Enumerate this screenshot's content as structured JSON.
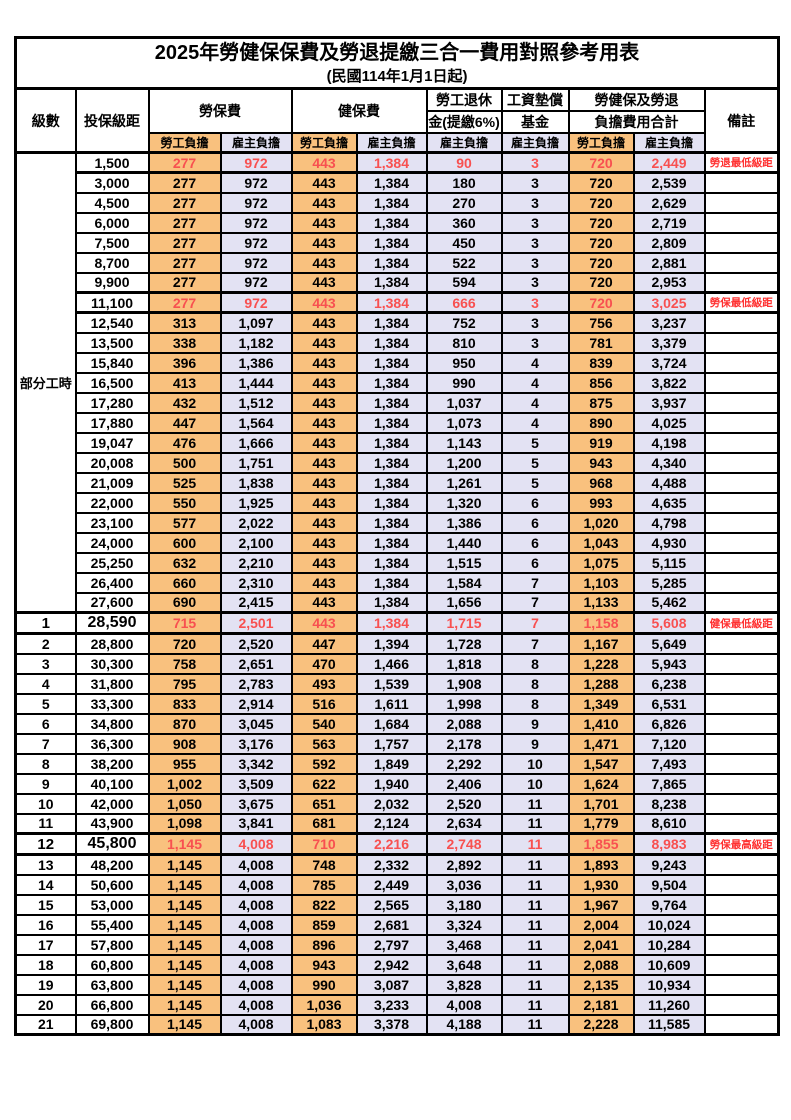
{
  "title": "2025年勞健保保費及勞退提繳三合一費用對照參考用表",
  "subtitle": "(民國114年1月1日起)",
  "header": {
    "level": "級數",
    "bracket": "投保級距",
    "labor_ins": "勞保費",
    "health_ins": "健保費",
    "pension_line1": "勞工退休",
    "pension_line2": "金(提繳6%)",
    "wage_fund_line1": "工資墊償",
    "wage_fund_line2": "基金",
    "total_line1": "勞健保及勞退",
    "total_line2": "負擔費用合計",
    "note": "備註",
    "employee": "勞工負擔",
    "employer": "雇主負擔"
  },
  "part_time": {
    "label": "部分工時",
    "rowspan": 23
  },
  "colors": {
    "employee_bg": "#F9C17E",
    "employer_bg": "#E3E2F3",
    "special_value_red": "#F85050",
    "note_red": "#FF3030"
  },
  "rows": [
    {
      "level": "",
      "bracket": "1,500",
      "li_emp": "277",
      "li_er": "972",
      "hi_emp": "443",
      "hi_er": "1,384",
      "pension_er": "90",
      "fund_er": "3",
      "sum_emp": "720",
      "sum_er": "2,449",
      "note": "勞退最低級距",
      "special": true,
      "emph": false
    },
    {
      "level": "",
      "bracket": "3,000",
      "li_emp": "277",
      "li_er": "972",
      "hi_emp": "443",
      "hi_er": "1,384",
      "pension_er": "180",
      "fund_er": "3",
      "sum_emp": "720",
      "sum_er": "2,539",
      "note": "",
      "special": false,
      "emph": false
    },
    {
      "level": "",
      "bracket": "4,500",
      "li_emp": "277",
      "li_er": "972",
      "hi_emp": "443",
      "hi_er": "1,384",
      "pension_er": "270",
      "fund_er": "3",
      "sum_emp": "720",
      "sum_er": "2,629",
      "note": "",
      "special": false,
      "emph": false
    },
    {
      "level": "",
      "bracket": "6,000",
      "li_emp": "277",
      "li_er": "972",
      "hi_emp": "443",
      "hi_er": "1,384",
      "pension_er": "360",
      "fund_er": "3",
      "sum_emp": "720",
      "sum_er": "2,719",
      "note": "",
      "special": false,
      "emph": false
    },
    {
      "level": "",
      "bracket": "7,500",
      "li_emp": "277",
      "li_er": "972",
      "hi_emp": "443",
      "hi_er": "1,384",
      "pension_er": "450",
      "fund_er": "3",
      "sum_emp": "720",
      "sum_er": "2,809",
      "note": "",
      "special": false,
      "emph": false
    },
    {
      "level": "",
      "bracket": "8,700",
      "li_emp": "277",
      "li_er": "972",
      "hi_emp": "443",
      "hi_er": "1,384",
      "pension_er": "522",
      "fund_er": "3",
      "sum_emp": "720",
      "sum_er": "2,881",
      "note": "",
      "special": false,
      "emph": false
    },
    {
      "level": "",
      "bracket": "9,900",
      "li_emp": "277",
      "li_er": "972",
      "hi_emp": "443",
      "hi_er": "1,384",
      "pension_er": "594",
      "fund_er": "3",
      "sum_emp": "720",
      "sum_er": "2,953",
      "note": "",
      "special": false,
      "emph": false
    },
    {
      "level": "",
      "bracket": "11,100",
      "li_emp": "277",
      "li_er": "972",
      "hi_emp": "443",
      "hi_er": "1,384",
      "pension_er": "666",
      "fund_er": "3",
      "sum_emp": "720",
      "sum_er": "3,025",
      "note": "勞保最低級距",
      "special": true,
      "emph": false
    },
    {
      "level": "",
      "bracket": "12,540",
      "li_emp": "313",
      "li_er": "1,097",
      "hi_emp": "443",
      "hi_er": "1,384",
      "pension_er": "752",
      "fund_er": "3",
      "sum_emp": "756",
      "sum_er": "3,237",
      "note": "",
      "special": false,
      "emph": false
    },
    {
      "level": "",
      "bracket": "13,500",
      "li_emp": "338",
      "li_er": "1,182",
      "hi_emp": "443",
      "hi_er": "1,384",
      "pension_er": "810",
      "fund_er": "3",
      "sum_emp": "781",
      "sum_er": "3,379",
      "note": "",
      "special": false,
      "emph": false
    },
    {
      "level": "",
      "bracket": "15,840",
      "li_emp": "396",
      "li_er": "1,386",
      "hi_emp": "443",
      "hi_er": "1,384",
      "pension_er": "950",
      "fund_er": "4",
      "sum_emp": "839",
      "sum_er": "3,724",
      "note": "",
      "special": false,
      "emph": false
    },
    {
      "level": "",
      "bracket": "16,500",
      "li_emp": "413",
      "li_er": "1,444",
      "hi_emp": "443",
      "hi_er": "1,384",
      "pension_er": "990",
      "fund_er": "4",
      "sum_emp": "856",
      "sum_er": "3,822",
      "note": "",
      "special": false,
      "emph": false
    },
    {
      "level": "",
      "bracket": "17,280",
      "li_emp": "432",
      "li_er": "1,512",
      "hi_emp": "443",
      "hi_er": "1,384",
      "pension_er": "1,037",
      "fund_er": "4",
      "sum_emp": "875",
      "sum_er": "3,937",
      "note": "",
      "special": false,
      "emph": false
    },
    {
      "level": "",
      "bracket": "17,880",
      "li_emp": "447",
      "li_er": "1,564",
      "hi_emp": "443",
      "hi_er": "1,384",
      "pension_er": "1,073",
      "fund_er": "4",
      "sum_emp": "890",
      "sum_er": "4,025",
      "note": "",
      "special": false,
      "emph": false
    },
    {
      "level": "",
      "bracket": "19,047",
      "li_emp": "476",
      "li_er": "1,666",
      "hi_emp": "443",
      "hi_er": "1,384",
      "pension_er": "1,143",
      "fund_er": "5",
      "sum_emp": "919",
      "sum_er": "4,198",
      "note": "",
      "special": false,
      "emph": false
    },
    {
      "level": "",
      "bracket": "20,008",
      "li_emp": "500",
      "li_er": "1,751",
      "hi_emp": "443",
      "hi_er": "1,384",
      "pension_er": "1,200",
      "fund_er": "5",
      "sum_emp": "943",
      "sum_er": "4,340",
      "note": "",
      "special": false,
      "emph": false
    },
    {
      "level": "",
      "bracket": "21,009",
      "li_emp": "525",
      "li_er": "1,838",
      "hi_emp": "443",
      "hi_er": "1,384",
      "pension_er": "1,261",
      "fund_er": "5",
      "sum_emp": "968",
      "sum_er": "4,488",
      "note": "",
      "special": false,
      "emph": false
    },
    {
      "level": "",
      "bracket": "22,000",
      "li_emp": "550",
      "li_er": "1,925",
      "hi_emp": "443",
      "hi_er": "1,384",
      "pension_er": "1,320",
      "fund_er": "6",
      "sum_emp": "993",
      "sum_er": "4,635",
      "note": "",
      "special": false,
      "emph": false
    },
    {
      "level": "",
      "bracket": "23,100",
      "li_emp": "577",
      "li_er": "2,022",
      "hi_emp": "443",
      "hi_er": "1,384",
      "pension_er": "1,386",
      "fund_er": "6",
      "sum_emp": "1,020",
      "sum_er": "4,798",
      "note": "",
      "special": false,
      "emph": false
    },
    {
      "level": "",
      "bracket": "24,000",
      "li_emp": "600",
      "li_er": "2,100",
      "hi_emp": "443",
      "hi_er": "1,384",
      "pension_er": "1,440",
      "fund_er": "6",
      "sum_emp": "1,043",
      "sum_er": "4,930",
      "note": "",
      "special": false,
      "emph": false
    },
    {
      "level": "",
      "bracket": "25,250",
      "li_emp": "632",
      "li_er": "2,210",
      "hi_emp": "443",
      "hi_er": "1,384",
      "pension_er": "1,515",
      "fund_er": "6",
      "sum_emp": "1,075",
      "sum_er": "5,115",
      "note": "",
      "special": false,
      "emph": false
    },
    {
      "level": "",
      "bracket": "26,400",
      "li_emp": "660",
      "li_er": "2,310",
      "hi_emp": "443",
      "hi_er": "1,384",
      "pension_er": "1,584",
      "fund_er": "7",
      "sum_emp": "1,103",
      "sum_er": "5,285",
      "note": "",
      "special": false,
      "emph": false
    },
    {
      "level": "",
      "bracket": "27,600",
      "li_emp": "690",
      "li_er": "2,415",
      "hi_emp": "443",
      "hi_er": "1,384",
      "pension_er": "1,656",
      "fund_er": "7",
      "sum_emp": "1,133",
      "sum_er": "5,462",
      "note": "",
      "special": false,
      "emph": false
    },
    {
      "level": "1",
      "bracket": "28,590",
      "li_emp": "715",
      "li_er": "2,501",
      "hi_emp": "443",
      "hi_er": "1,384",
      "pension_er": "1,715",
      "fund_er": "7",
      "sum_emp": "1,158",
      "sum_er": "5,608",
      "note": "健保最低級距",
      "special": true,
      "emph": true
    },
    {
      "level": "2",
      "bracket": "28,800",
      "li_emp": "720",
      "li_er": "2,520",
      "hi_emp": "447",
      "hi_er": "1,394",
      "pension_er": "1,728",
      "fund_er": "7",
      "sum_emp": "1,167",
      "sum_er": "5,649",
      "note": "",
      "special": false,
      "emph": false
    },
    {
      "level": "3",
      "bracket": "30,300",
      "li_emp": "758",
      "li_er": "2,651",
      "hi_emp": "470",
      "hi_er": "1,466",
      "pension_er": "1,818",
      "fund_er": "8",
      "sum_emp": "1,228",
      "sum_er": "5,943",
      "note": "",
      "special": false,
      "emph": false
    },
    {
      "level": "4",
      "bracket": "31,800",
      "li_emp": "795",
      "li_er": "2,783",
      "hi_emp": "493",
      "hi_er": "1,539",
      "pension_er": "1,908",
      "fund_er": "8",
      "sum_emp": "1,288",
      "sum_er": "6,238",
      "note": "",
      "special": false,
      "emph": false
    },
    {
      "level": "5",
      "bracket": "33,300",
      "li_emp": "833",
      "li_er": "2,914",
      "hi_emp": "516",
      "hi_er": "1,611",
      "pension_er": "1,998",
      "fund_er": "8",
      "sum_emp": "1,349",
      "sum_er": "6,531",
      "note": "",
      "special": false,
      "emph": false
    },
    {
      "level": "6",
      "bracket": "34,800",
      "li_emp": "870",
      "li_er": "3,045",
      "hi_emp": "540",
      "hi_er": "1,684",
      "pension_er": "2,088",
      "fund_er": "9",
      "sum_emp": "1,410",
      "sum_er": "6,826",
      "note": "",
      "special": false,
      "emph": false
    },
    {
      "level": "7",
      "bracket": "36,300",
      "li_emp": "908",
      "li_er": "3,176",
      "hi_emp": "563",
      "hi_er": "1,757",
      "pension_er": "2,178",
      "fund_er": "9",
      "sum_emp": "1,471",
      "sum_er": "7,120",
      "note": "",
      "special": false,
      "emph": false
    },
    {
      "level": "8",
      "bracket": "38,200",
      "li_emp": "955",
      "li_er": "3,342",
      "hi_emp": "592",
      "hi_er": "1,849",
      "pension_er": "2,292",
      "fund_er": "10",
      "sum_emp": "1,547",
      "sum_er": "7,493",
      "note": "",
      "special": false,
      "emph": false
    },
    {
      "level": "9",
      "bracket": "40,100",
      "li_emp": "1,002",
      "li_er": "3,509",
      "hi_emp": "622",
      "hi_er": "1,940",
      "pension_er": "2,406",
      "fund_er": "10",
      "sum_emp": "1,624",
      "sum_er": "7,865",
      "note": "",
      "special": false,
      "emph": false
    },
    {
      "level": "10",
      "bracket": "42,000",
      "li_emp": "1,050",
      "li_er": "3,675",
      "hi_emp": "651",
      "hi_er": "2,032",
      "pension_er": "2,520",
      "fund_er": "11",
      "sum_emp": "1,701",
      "sum_er": "8,238",
      "note": "",
      "special": false,
      "emph": false
    },
    {
      "level": "11",
      "bracket": "43,900",
      "li_emp": "1,098",
      "li_er": "3,841",
      "hi_emp": "681",
      "hi_er": "2,124",
      "pension_er": "2,634",
      "fund_er": "11",
      "sum_emp": "1,779",
      "sum_er": "8,610",
      "note": "",
      "special": false,
      "emph": false
    },
    {
      "level": "12",
      "bracket": "45,800",
      "li_emp": "1,145",
      "li_er": "4,008",
      "hi_emp": "710",
      "hi_er": "2,216",
      "pension_er": "2,748",
      "fund_er": "11",
      "sum_emp": "1,855",
      "sum_er": "8,983",
      "note": "勞保最高級距",
      "special": true,
      "emph": true
    },
    {
      "level": "13",
      "bracket": "48,200",
      "li_emp": "1,145",
      "li_er": "4,008",
      "hi_emp": "748",
      "hi_er": "2,332",
      "pension_er": "2,892",
      "fund_er": "11",
      "sum_emp": "1,893",
      "sum_er": "9,243",
      "note": "",
      "special": false,
      "emph": false
    },
    {
      "level": "14",
      "bracket": "50,600",
      "li_emp": "1,145",
      "li_er": "4,008",
      "hi_emp": "785",
      "hi_er": "2,449",
      "pension_er": "3,036",
      "fund_er": "11",
      "sum_emp": "1,930",
      "sum_er": "9,504",
      "note": "",
      "special": false,
      "emph": false
    },
    {
      "level": "15",
      "bracket": "53,000",
      "li_emp": "1,145",
      "li_er": "4,008",
      "hi_emp": "822",
      "hi_er": "2,565",
      "pension_er": "3,180",
      "fund_er": "11",
      "sum_emp": "1,967",
      "sum_er": "9,764",
      "note": "",
      "special": false,
      "emph": false
    },
    {
      "level": "16",
      "bracket": "55,400",
      "li_emp": "1,145",
      "li_er": "4,008",
      "hi_emp": "859",
      "hi_er": "2,681",
      "pension_er": "3,324",
      "fund_er": "11",
      "sum_emp": "2,004",
      "sum_er": "10,024",
      "note": "",
      "special": false,
      "emph": false
    },
    {
      "level": "17",
      "bracket": "57,800",
      "li_emp": "1,145",
      "li_er": "4,008",
      "hi_emp": "896",
      "hi_er": "2,797",
      "pension_er": "3,468",
      "fund_er": "11",
      "sum_emp": "2,041",
      "sum_er": "10,284",
      "note": "",
      "special": false,
      "emph": false
    },
    {
      "level": "18",
      "bracket": "60,800",
      "li_emp": "1,145",
      "li_er": "4,008",
      "hi_emp": "943",
      "hi_er": "2,942",
      "pension_er": "3,648",
      "fund_er": "11",
      "sum_emp": "2,088",
      "sum_er": "10,609",
      "note": "",
      "special": false,
      "emph": false
    },
    {
      "level": "19",
      "bracket": "63,800",
      "li_emp": "1,145",
      "li_er": "4,008",
      "hi_emp": "990",
      "hi_er": "3,087",
      "pension_er": "3,828",
      "fund_er": "11",
      "sum_emp": "2,135",
      "sum_er": "10,934",
      "note": "",
      "special": false,
      "emph": false
    },
    {
      "level": "20",
      "bracket": "66,800",
      "li_emp": "1,145",
      "li_er": "4,008",
      "hi_emp": "1,036",
      "hi_er": "3,233",
      "pension_er": "4,008",
      "fund_er": "11",
      "sum_emp": "2,181",
      "sum_er": "11,260",
      "note": "",
      "special": false,
      "emph": false
    },
    {
      "level": "21",
      "bracket": "69,800",
      "li_emp": "1,145",
      "li_er": "4,008",
      "hi_emp": "1,083",
      "hi_er": "3,378",
      "pension_er": "4,188",
      "fund_er": "11",
      "sum_emp": "2,228",
      "sum_er": "11,585",
      "note": "",
      "special": false,
      "emph": false
    }
  ]
}
